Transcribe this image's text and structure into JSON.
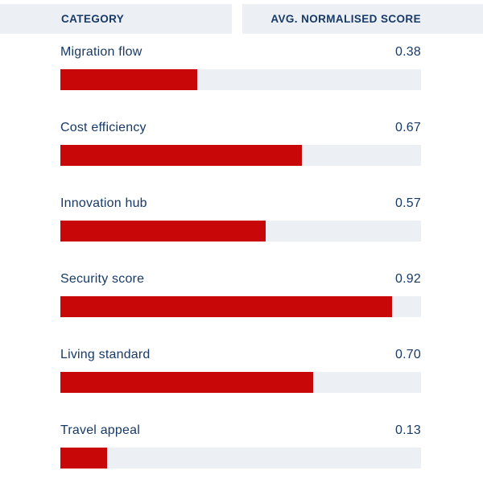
{
  "table": {
    "columns": [
      {
        "label": "CATEGORY"
      },
      {
        "label": "AVG. NORMALISED SCORE"
      }
    ]
  },
  "colors": {
    "bar": "#c80808",
    "track": "#eceff4",
    "header_bg": "#eceff4",
    "text": "#173a66"
  },
  "chart_data": {
    "type": "bar",
    "orientation": "horizontal",
    "title": "",
    "xlabel": "",
    "ylabel": "",
    "xlim": [
      0,
      1
    ],
    "grid": false,
    "legend": false,
    "categories": [
      "Migration flow",
      "Cost efficiency",
      "Innovation hub",
      "Security score",
      "Living standard",
      "Travel appeal"
    ],
    "values": [
      0.38,
      0.67,
      0.57,
      0.92,
      0.7,
      0.13
    ],
    "value_labels": [
      "0.38",
      "0.67",
      "0.57",
      "0.92",
      "0.70",
      "0.13"
    ]
  }
}
